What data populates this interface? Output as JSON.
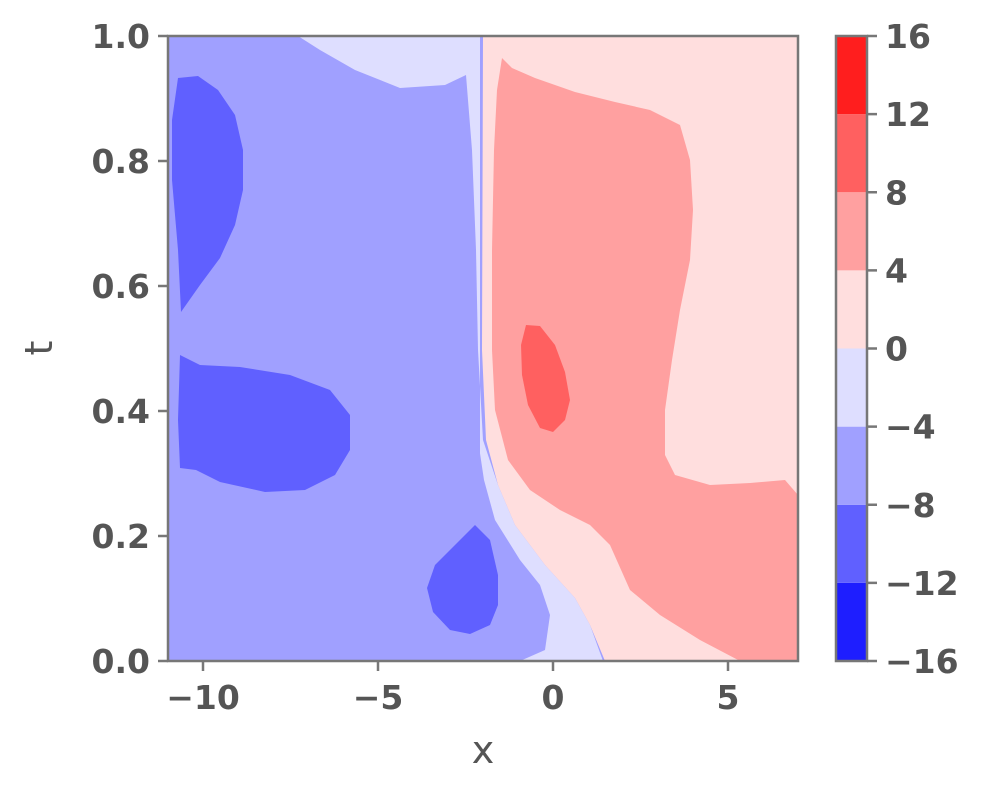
{
  "chart_data": {
    "type": "heatmap",
    "title": "",
    "xlabel": "x",
    "ylabel": "t",
    "xlim": [
      -11,
      7
    ],
    "ylim": [
      0.0,
      1.0
    ],
    "x_ticks": [
      -10,
      -5,
      0,
      5
    ],
    "x_tick_labels": [
      "−10",
      "−5",
      "0",
      "5"
    ],
    "y_ticks": [
      0.0,
      0.2,
      0.4,
      0.6,
      0.8,
      1.0
    ],
    "y_tick_labels": [
      "0.0",
      "0.2",
      "0.4",
      "0.6",
      "0.8",
      "1.0"
    ],
    "colormap": "bwr",
    "colorbar": {
      "levels": [
        -16,
        -12,
        -8,
        -4,
        0,
        4,
        8,
        12,
        16
      ],
      "tick_labels": [
        "−16",
        "−12",
        "−8",
        "−4",
        "0",
        "4",
        "8",
        "12",
        "16"
      ],
      "band_colors": [
        "#1e1eff",
        "#6060ff",
        "#a0a0ff",
        "#dedeff",
        "#ffdede",
        "#ffa0a0",
        "#ff6060",
        "#ff1e1e"
      ]
    },
    "regions": [
      {
        "level_range": [
          -8,
          -4
        ],
        "description": "background left of x ≈ -2"
      },
      {
        "level_range": [
          -4,
          0
        ],
        "description": "band near x ≈ -2 to 1.5 and top strip near x ≈ -5"
      },
      {
        "level_range": [
          0,
          4
        ],
        "description": "background right of x ≈ -2"
      },
      {
        "level_range": [
          4,
          8
        ],
        "description": "large lobe x ≈ -1.5 to 7"
      },
      {
        "level_range": [
          8,
          12
        ],
        "description": "blob near x ≈ 0, t ≈ 0.45"
      },
      {
        "level_range": [
          -12,
          -8
        ],
        "description": "blob near x ≈ -10.5, t ≈ 0.55 to 0.93"
      },
      {
        "level_range": [
          -12,
          -8
        ],
        "description": "blob near x ≈ -9, t ≈ 0.28 to 0.49"
      },
      {
        "level_range": [
          -12,
          -8
        ],
        "description": "blob near x ≈ -3, t ≈ 0.05 to 0.22"
      }
    ]
  }
}
